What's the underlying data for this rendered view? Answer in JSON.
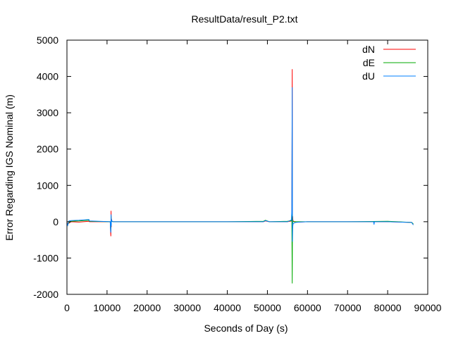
{
  "chart_data": {
    "type": "line",
    "title": "ResultData/result_P2.txt",
    "xlabel": "Seconds of Day (s)",
    "ylabel": "Error Regarding IGS Nominal (m)",
    "xlim": [
      0,
      90000
    ],
    "ylim": [
      -2000,
      5000
    ],
    "xticks": [
      0,
      10000,
      20000,
      30000,
      40000,
      50000,
      60000,
      70000,
      80000,
      90000
    ],
    "yticks": [
      -2000,
      -1000,
      0,
      1000,
      2000,
      3000,
      4000,
      5000
    ],
    "xtick_labels": [
      "0",
      "10000",
      "20000",
      "30000",
      "40000",
      "50000",
      "60000",
      "70000",
      "80000",
      "90000"
    ],
    "ytick_labels": [
      "-2000",
      "-1000",
      "0",
      "1000",
      "2000",
      "3000",
      "4000",
      "5000"
    ],
    "grid": false,
    "legend_position": "top-right",
    "series": [
      {
        "name": "dN",
        "color": "#ff0000",
        "x": [
          0,
          200,
          500,
          1000,
          3000,
          5500,
          5600,
          10800,
          10900,
          10950,
          11000,
          11050,
          11100,
          11200,
          11500,
          12000,
          20000,
          30000,
          40000,
          49000,
          49500,
          50500,
          55000,
          56000,
          56100,
          56200,
          56250,
          56300,
          56350,
          56400,
          56600,
          57000,
          58000,
          60000,
          70000,
          80000,
          86000,
          86400
        ],
        "y": [
          -20,
          -60,
          -40,
          0,
          -10,
          10,
          0,
          0,
          -300,
          -400,
          300,
          -150,
          80,
          20,
          0,
          0,
          0,
          0,
          0,
          0,
          20,
          0,
          0,
          20,
          80,
          4200,
          -300,
          150,
          50,
          20,
          10,
          0,
          -10,
          0,
          0,
          0,
          -20,
          -80
        ]
      },
      {
        "name": "dE",
        "color": "#00aa00",
        "x": [
          0,
          200,
          500,
          1000,
          3000,
          5500,
          5600,
          10800,
          10900,
          10950,
          11000,
          11050,
          11100,
          11200,
          11500,
          12000,
          20000,
          30000,
          40000,
          49000,
          49500,
          50500,
          55000,
          56000,
          56100,
          56200,
          56250,
          56300,
          56350,
          56400,
          56600,
          57000,
          58000,
          60000,
          70000,
          80000,
          86000,
          86400
        ],
        "y": [
          -40,
          -80,
          -20,
          10,
          20,
          40,
          10,
          0,
          -200,
          -250,
          150,
          -80,
          40,
          10,
          0,
          0,
          0,
          0,
          0,
          10,
          40,
          0,
          10,
          30,
          250,
          -1700,
          200,
          -60,
          20,
          10,
          0,
          0,
          0,
          0,
          0,
          10,
          -20,
          -60
        ]
      },
      {
        "name": "dU",
        "color": "#0080ff",
        "x": [
          0,
          200,
          500,
          1000,
          3000,
          5500,
          5600,
          10800,
          10900,
          10950,
          11000,
          11050,
          11100,
          11200,
          11500,
          12000,
          20000,
          30000,
          40000,
          49000,
          49500,
          50500,
          55000,
          56000,
          56100,
          56200,
          56250,
          56300,
          56350,
          56400,
          56600,
          57000,
          58000,
          60000,
          70000,
          76500,
          76600,
          76700,
          80000,
          86000,
          86400
        ],
        "y": [
          -20,
          -100,
          20,
          30,
          40,
          60,
          20,
          0,
          -250,
          -300,
          200,
          -120,
          60,
          20,
          0,
          0,
          0,
          0,
          0,
          0,
          30,
          0,
          0,
          50,
          300,
          3700,
          -550,
          -200,
          -100,
          -60,
          -40,
          -20,
          -10,
          0,
          0,
          0,
          -80,
          0,
          0,
          -20,
          -90
        ]
      }
    ]
  }
}
